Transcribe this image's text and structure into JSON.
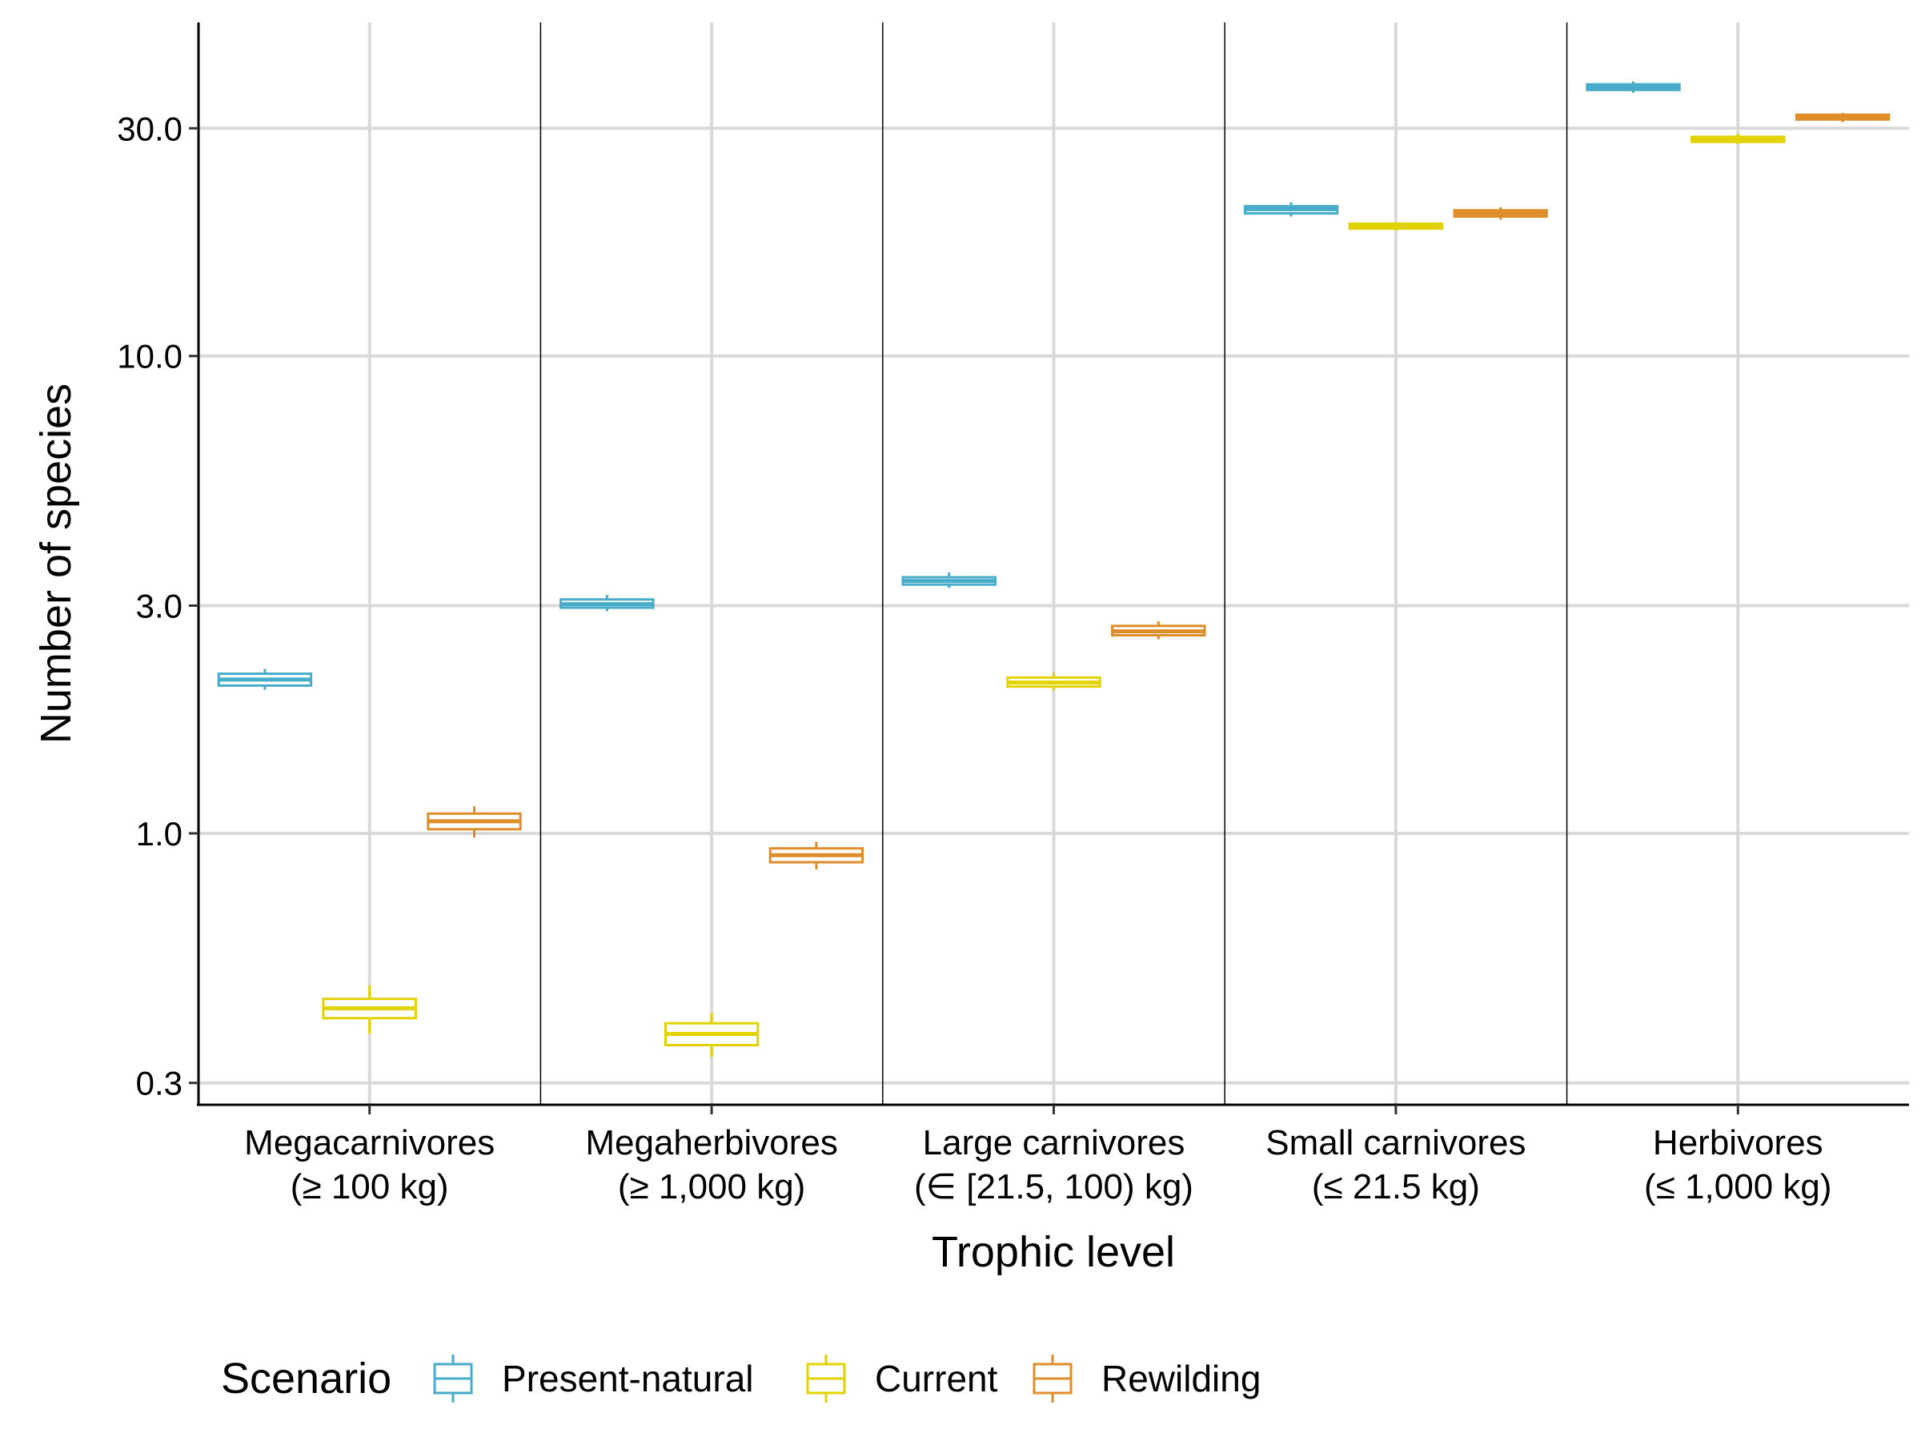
{
  "chart_data": {
    "type": "boxplot",
    "title": "",
    "xlabel": "Trophic level",
    "ylabel": "Number of species",
    "y_scale": "log10",
    "ylim": [
      0.27,
      50
    ],
    "y_ticks": [
      0.3,
      1.0,
      3.0,
      10.0,
      30.0
    ],
    "y_tick_labels": [
      "0.3",
      "1.0",
      "3.0",
      "10.0",
      "30.0"
    ],
    "categories": [
      {
        "line1": "Megacarnivores",
        "line2": "(≥ 100 kg)"
      },
      {
        "line1": "Megaherbivores",
        "line2": "(≥ 1,000 kg)"
      },
      {
        "line1": "Large carnivores",
        "line2": "(∈ [21.5, 100) kg)"
      },
      {
        "line1": "Small carnivores",
        "line2": "(≤ 21.5 kg)"
      },
      {
        "line1": "Herbivores",
        "line2": "(≤ 1,000 kg)"
      }
    ],
    "legend": {
      "title": "Scenario",
      "position": "bottom"
    },
    "series": [
      {
        "name": "Present-natural",
        "color": "#46ACC8",
        "boxes": [
          {
            "min": 2.0,
            "q1": 2.04,
            "median": 2.1,
            "q3": 2.16,
            "max": 2.21
          },
          {
            "min": 2.92,
            "q1": 2.97,
            "median": 3.02,
            "q3": 3.09,
            "max": 3.16
          },
          {
            "min": 3.27,
            "q1": 3.32,
            "median": 3.38,
            "q3": 3.44,
            "max": 3.52
          },
          {
            "min": 19.6,
            "q1": 19.9,
            "median": 20.3,
            "q3": 20.6,
            "max": 21.0
          },
          {
            "min": 35.6,
            "q1": 36.1,
            "median": 36.6,
            "q3": 37.1,
            "max": 37.6
          }
        ]
      },
      {
        "name": "Current",
        "color": "#E2D200",
        "boxes": [
          {
            "min": 0.38,
            "q1": 0.41,
            "median": 0.43,
            "q3": 0.45,
            "max": 0.48
          },
          {
            "min": 0.34,
            "q1": 0.36,
            "median": 0.38,
            "q3": 0.4,
            "max": 0.42
          },
          {
            "min": 1.99,
            "q1": 2.03,
            "median": 2.07,
            "q3": 2.12,
            "max": 2.17
          },
          {
            "min": 18.3,
            "q1": 18.5,
            "median": 18.7,
            "q3": 18.9,
            "max": 19.1
          },
          {
            "min": 27.8,
            "q1": 28.1,
            "median": 28.4,
            "q3": 28.8,
            "max": 29.2
          }
        ]
      },
      {
        "name": "Rewilding",
        "color": "#DD8D29",
        "boxes": [
          {
            "min": 0.98,
            "q1": 1.02,
            "median": 1.06,
            "q3": 1.1,
            "max": 1.14
          },
          {
            "min": 0.84,
            "q1": 0.87,
            "median": 0.9,
            "q3": 0.93,
            "max": 0.96
          },
          {
            "min": 2.55,
            "q1": 2.6,
            "median": 2.65,
            "q3": 2.72,
            "max": 2.78
          },
          {
            "min": 19.3,
            "q1": 19.6,
            "median": 19.9,
            "q3": 20.2,
            "max": 20.5
          },
          {
            "min": 30.9,
            "q1": 31.3,
            "median": 31.6,
            "q3": 31.9,
            "max": 32.3
          }
        ]
      }
    ]
  }
}
